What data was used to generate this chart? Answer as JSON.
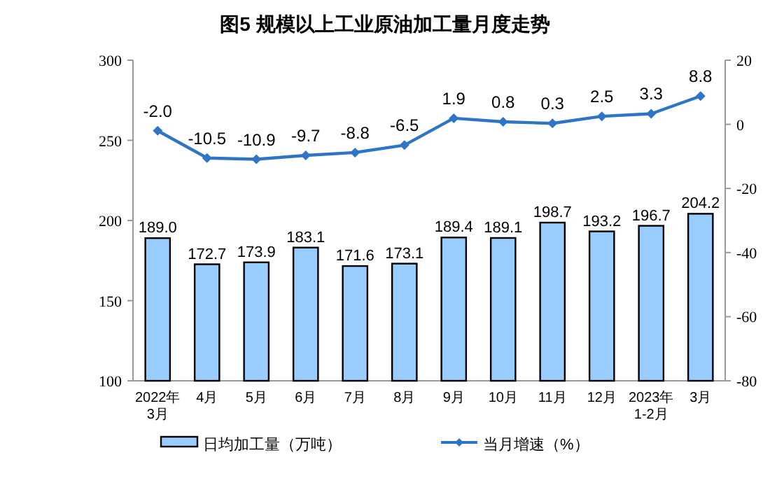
{
  "chart_data": {
    "type": "bar",
    "title": "图5  规模以上工业原油加工量月度走势",
    "categories": [
      "2022年\n3月",
      "4月",
      "5月",
      "6月",
      "7月",
      "8月",
      "9月",
      "10月",
      "11月",
      "12月",
      "2023年\n1-2月",
      "3月"
    ],
    "series": [
      {
        "name": "日均加工量（万吨）",
        "color": "#99ccff",
        "values": [
          189.0,
          172.7,
          173.9,
          183.1,
          171.6,
          173.1,
          189.4,
          189.1,
          198.7,
          193.2,
          196.7,
          204.2
        ],
        "value_labels": [
          "189.0",
          "172.7",
          "173.9",
          "183.1",
          "171.6",
          "173.1",
          "189.4",
          "189.1",
          "198.7",
          "193.2",
          "196.7",
          "204.2"
        ]
      },
      {
        "name": "当月增速（%）",
        "type": "line",
        "axis": "y2",
        "color": "#2e75c6",
        "marker": "diamond",
        "values": [
          -2.0,
          -10.5,
          -10.9,
          -9.7,
          -8.8,
          -6.5,
          1.9,
          0.8,
          0.3,
          2.5,
          3.3,
          8.8
        ],
        "value_labels": [
          "-2.0",
          "-10.5",
          "-10.9",
          "-9.7",
          "-8.8",
          "-6.5",
          "1.9",
          "0.8",
          "0.3",
          "2.5",
          "3.3",
          "8.8"
        ]
      }
    ],
    "ylim": [
      100,
      300
    ],
    "yticks": [
      100,
      150,
      200,
      250,
      300
    ],
    "y2lim": [
      -80,
      20
    ],
    "y2ticks": [
      -80,
      -60,
      -40,
      -20,
      0,
      20
    ],
    "legend": "bottom",
    "grid": false
  }
}
